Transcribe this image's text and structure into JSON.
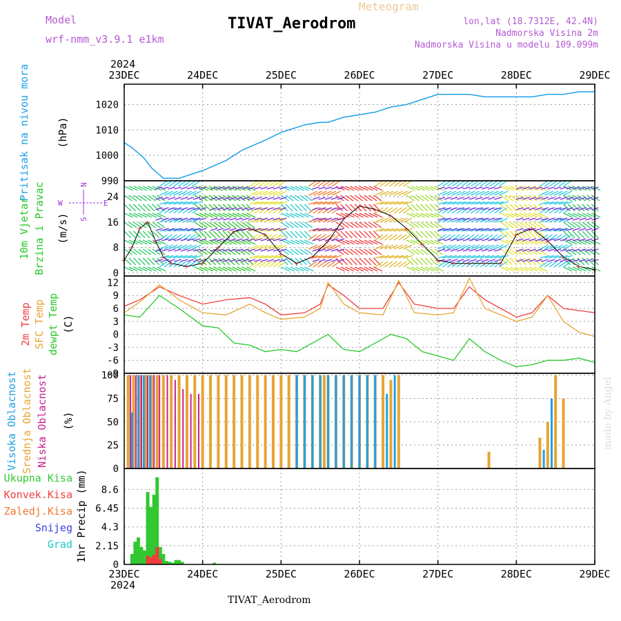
{
  "header": {
    "model_label": "Model",
    "model_name": "wrf-nmm_v3.9.1 e1km",
    "product": "Meteogram",
    "station": "TIVAT_Aerodrom",
    "lonlat": "lon,lat (18.7312E, 42.4N)",
    "height": "Nadmorska Visina 2m",
    "model_height": "Nadmorska Visina u modelu 109.099m"
  },
  "footer": {
    "station": "TIVAT_Aerodrom",
    "credit": "made by Angel"
  },
  "time_axis": {
    "year": "2024",
    "ticks": [
      "23DEC",
      "24DEC",
      "25DEC",
      "26DEC",
      "27DEC",
      "28DEC",
      "29DEC"
    ]
  },
  "colors": {
    "pressure": "#1ea0e6",
    "temp2m": "#f03c3c",
    "sfc_temp": "#e6a532",
    "dewpoint": "#28c828",
    "precip": "#32c832",
    "conv": "#f03c3c",
    "high_cloud": "#1ea0e6",
    "mid_cloud": "#e6a532",
    "low_cloud": "#c81e96",
    "wind_label": "#28c828",
    "wind_axis": "#9632e6"
  },
  "chart_data": [
    {
      "type": "line",
      "panel": "pressure",
      "ylabel_main": "Pritisak na nivou mora",
      "ylabel_unit": "(hPa)",
      "ylim": [
        990,
        1028
      ],
      "yticks": [
        "990",
        "1000",
        "1010",
        "1020"
      ],
      "series": [
        {
          "name": "Pritisak na nivou mora",
          "x": [
            0,
            0.1,
            0.25,
            0.35,
            0.5,
            0.7,
            1.0,
            1.3,
            1.5,
            1.8,
            2.0,
            2.3,
            2.5,
            2.6,
            2.8,
            3.0,
            3.2,
            3.4,
            3.6,
            3.8,
            4.0,
            4.2,
            4.4,
            4.6,
            4.8,
            5.0,
            5.2,
            5.4,
            5.6,
            5.8,
            6.0
          ],
          "values": [
            1005,
            1003,
            999,
            995,
            991,
            991,
            994,
            998,
            1002,
            1006,
            1009,
            1012,
            1013,
            1013,
            1015,
            1016,
            1017,
            1019,
            1020,
            1022,
            1024,
            1024,
            1024,
            1023,
            1023,
            1023,
            1023,
            1024,
            1024,
            1025,
            1025
          ]
        }
      ]
    },
    {
      "type": "line",
      "panel": "wind",
      "ylabel_1": "10m Vjetar",
      "ylabel_2": "Brzina i Pravac",
      "ylabel_unit": "(m/s)",
      "compass": {
        "n": "N",
        "s": "S",
        "e": "E",
        "w": "W"
      },
      "ylim": [
        -1,
        29
      ],
      "yticks": [
        "0",
        "8",
        "16",
        "24"
      ],
      "series": [
        {
          "name": "Brzina",
          "x": [
            0,
            0.1,
            0.2,
            0.3,
            0.4,
            0.5,
            0.6,
            0.8,
            1.0,
            1.2,
            1.4,
            1.6,
            1.8,
            2.0,
            2.2,
            2.4,
            2.6,
            2.8,
            3.0,
            3.2,
            3.4,
            3.6,
            3.8,
            4.0,
            4.2,
            4.4,
            4.6,
            4.8,
            5.0,
            5.2,
            5.4,
            5.6,
            5.8,
            6.0
          ],
          "values": [
            4,
            8,
            14,
            16,
            10,
            5,
            3,
            2,
            3,
            8,
            13,
            14,
            12,
            6,
            3,
            5,
            10,
            17,
            21,
            20,
            18,
            14,
            9,
            4,
            3,
            3,
            3,
            3,
            12,
            14,
            10,
            5,
            2,
            1
          ]
        }
      ]
    },
    {
      "type": "line",
      "panel": "temperature",
      "ylabels": [
        "2m Temp",
        "SFC Temp",
        "dewpt Temp"
      ],
      "ylabel_unit": "(C)",
      "ylim": [
        -9,
        13.5
      ],
      "yticks": [
        "-9",
        "-6",
        "-3",
        "0",
        "3",
        "6",
        "9",
        "12"
      ],
      "series": [
        {
          "name": "2m Temp",
          "x": [
            0,
            0.2,
            0.45,
            0.7,
            1.0,
            1.3,
            1.6,
            1.8,
            2.0,
            2.3,
            2.5,
            2.6,
            2.8,
            3.0,
            3.3,
            3.5,
            3.7,
            4.0,
            4.2,
            4.4,
            4.6,
            4.8,
            5.0,
            5.2,
            5.4,
            5.6,
            5.8,
            6.0
          ],
          "values": [
            6.5,
            8,
            11,
            9,
            7,
            8,
            8.5,
            7,
            4.5,
            5,
            7,
            11.5,
            9,
            6,
            6,
            12,
            7,
            6,
            6,
            11,
            8,
            6,
            4,
            5,
            9,
            6,
            5.5,
            5
          ]
        },
        {
          "name": "SFC Temp",
          "x": [
            0,
            0.2,
            0.45,
            0.7,
            1.0,
            1.3,
            1.6,
            1.8,
            2.0,
            2.3,
            2.5,
            2.6,
            2.8,
            3.0,
            3.3,
            3.5,
            3.7,
            4.0,
            4.2,
            4.4,
            4.6,
            4.8,
            5.0,
            5.2,
            5.4,
            5.6,
            5.8,
            6.0
          ],
          "values": [
            5,
            7.5,
            11.5,
            8,
            5,
            4.5,
            7,
            5,
            3.5,
            4,
            6,
            12,
            7,
            5,
            4.5,
            12.5,
            5,
            4.5,
            5,
            13,
            6,
            4.5,
            3,
            4,
            9,
            3,
            0.5,
            -0.5
          ]
        },
        {
          "name": "dewpt Temp",
          "x": [
            0,
            0.2,
            0.45,
            0.7,
            1.0,
            1.2,
            1.4,
            1.6,
            1.8,
            2.0,
            2.2,
            2.4,
            2.6,
            2.8,
            3.0,
            3.2,
            3.4,
            3.6,
            3.8,
            4.0,
            4.2,
            4.4,
            4.6,
            4.8,
            5.0,
            5.2,
            5.4,
            5.6,
            5.8,
            6.0
          ],
          "values": [
            4.5,
            4,
            9,
            6,
            2,
            1.5,
            -2,
            -2.5,
            -4,
            -3.5,
            -4,
            -2,
            0,
            -3.5,
            -4,
            -2,
            0,
            -1,
            -4,
            -5,
            -6,
            -1,
            -4,
            -6,
            -7.5,
            -7,
            -6,
            -6,
            -5.5,
            -6.5
          ]
        }
      ]
    },
    {
      "type": "bar",
      "panel": "clouds",
      "ylabels": [
        "Visoka Oblacnost",
        "Srednja Oblacnost",
        "Niska Oblacnost"
      ],
      "ylabel_unit": "(%)",
      "ylim": [
        0,
        102
      ],
      "yticks": [
        "0",
        "25",
        "50",
        "75",
        "100"
      ],
      "series": [
        {
          "name": "Srednja Oblacnost",
          "x": [
            0.05,
            0.12,
            0.2,
            0.28,
            0.35,
            0.42,
            0.5,
            0.6,
            0.7,
            0.8,
            0.9,
            1.0,
            1.1,
            1.2,
            1.3,
            1.4,
            1.5,
            1.6,
            1.7,
            1.8,
            1.9,
            2.0,
            2.1,
            2.2,
            2.3,
            2.4,
            2.5,
            2.55,
            2.6,
            2.7,
            2.8,
            2.9,
            3.0,
            3.1,
            3.2,
            3.3,
            3.4,
            3.5,
            4.65,
            5.3,
            5.4,
            5.5,
            5.6
          ],
          "values": [
            100,
            100,
            100,
            100,
            100,
            100,
            100,
            100,
            100,
            100,
            100,
            100,
            100,
            100,
            100,
            100,
            100,
            100,
            100,
            100,
            100,
            100,
            100,
            100,
            100,
            100,
            100,
            100,
            100,
            100,
            100,
            100,
            100,
            100,
            100,
            100,
            95,
            100,
            18,
            33,
            50,
            100,
            75
          ]
        },
        {
          "name": "Niska Oblacnost",
          "x": [
            0.08,
            0.15,
            0.22,
            0.3,
            0.38,
            0.45,
            0.55,
            0.65,
            0.75,
            0.85,
            0.95
          ],
          "values": [
            100,
            100,
            100,
            100,
            100,
            100,
            100,
            95,
            85,
            80,
            80
          ]
        },
        {
          "name": "Visoka Oblacnost",
          "x": [
            0.1,
            0.18,
            0.25,
            0.33,
            2.2,
            2.3,
            2.4,
            2.5,
            2.6,
            2.7,
            2.8,
            2.9,
            3.0,
            3.1,
            3.2,
            3.35,
            3.45,
            5.35,
            5.45
          ],
          "values": [
            60,
            100,
            100,
            100,
            100,
            100,
            100,
            100,
            100,
            100,
            100,
            100,
            100,
            100,
            100,
            80,
            100,
            20,
            75
          ]
        }
      ]
    },
    {
      "type": "bar",
      "panel": "precip",
      "ylabels": [
        "Ukupna Kisa",
        "Konvek.Kisa",
        "Zaledj.Kisa",
        "Snijeg",
        "Grad"
      ],
      "ylabel_colors": [
        "#32c832",
        "#f03c3c",
        "#f07832",
        "#3c3ce6",
        "#1ec8c8"
      ],
      "ylabel_unit": "1hr Precip (mm)",
      "ylim": [
        0,
        11
      ],
      "yticks": [
        "0",
        "2.15",
        "4.3",
        "6.45",
        "8.6"
      ],
      "series": [
        {
          "name": "Ukupna Kisa",
          "x": [
            0.1,
            0.14,
            0.18,
            0.22,
            0.26,
            0.3,
            0.34,
            0.38,
            0.42,
            0.46,
            0.5,
            0.54,
            0.58,
            0.62,
            0.66,
            0.7,
            0.74,
            1.15
          ],
          "values": [
            1.2,
            2.6,
            3.1,
            2,
            1.6,
            8.3,
            6.6,
            8,
            10,
            2,
            1.2,
            0.4,
            0.3,
            0.2,
            0.5,
            0.5,
            0.3,
            0.2
          ]
        },
        {
          "name": "Konvek.Kisa",
          "x": [
            0.3,
            0.34,
            0.38,
            0.42,
            0.46
          ],
          "values": [
            1.0,
            0.8,
            1.1,
            2.0,
            0.6
          ]
        }
      ]
    }
  ]
}
